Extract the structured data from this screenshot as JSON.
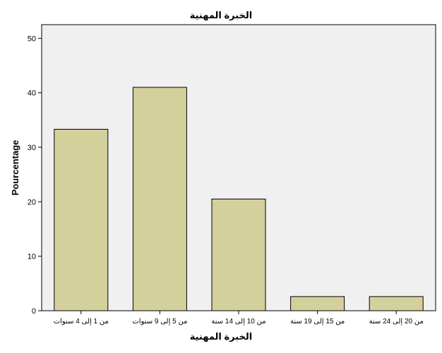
{
  "chart_data": {
    "type": "bar",
    "title": "الخبرة المهنية",
    "xlabel": "الخبرة المهنية",
    "ylabel": "Pourcentage",
    "categories": [
      "من 1 إلى 4 سنوات",
      "من 5 إلى 9 سنوات",
      "من 10 إلى 14 سنة",
      "من 15 إلى 19 سنة",
      "من 20 إلى 24 سنة"
    ],
    "values": [
      33.3,
      41.0,
      20.5,
      2.6,
      2.6
    ],
    "ylim": [
      0,
      52.5
    ],
    "yticks": [
      0,
      10,
      20,
      30,
      40,
      50
    ],
    "grid": false,
    "colors": {
      "bar_fill": "#d4d09c",
      "bar_stroke": "#000000",
      "plot_background": "#f0f0f0"
    }
  }
}
